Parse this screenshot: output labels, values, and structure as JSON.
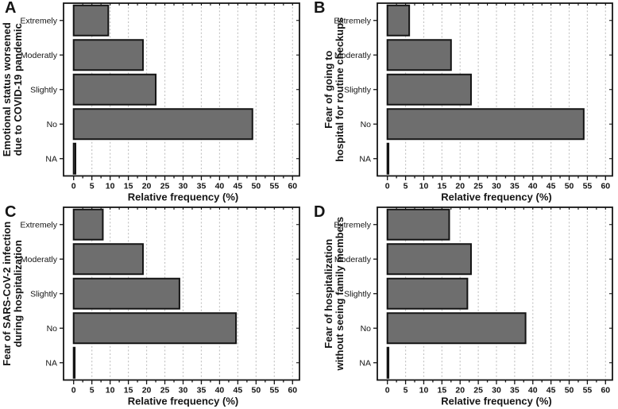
{
  "style": {
    "background": "#ffffff",
    "bar_fill": "#6e6e6e",
    "bar_stroke": "#141414",
    "grid_color": "#c4c4c4",
    "axis_color": "#141414",
    "text_color": "#141414"
  },
  "chart_data": [
    {
      "panel": "A",
      "type": "bar",
      "orientation": "horizontal",
      "ylabel_lines": [
        "Emotional status worsened",
        "due to COVID-19 pandemic"
      ],
      "categories": [
        "Extremely",
        "Moderatly",
        "Slightly",
        "No",
        "NA"
      ],
      "values": [
        9.5,
        19,
        22.5,
        49,
        0.5
      ],
      "xlabel": "Relative frequency (%)",
      "xlim": [
        0,
        60
      ],
      "xtick_step": 5,
      "minor_tick_step": 2.5,
      "xtick_labels": [
        "0",
        "5",
        "10",
        "15",
        "20",
        "25",
        "30",
        "35",
        "40",
        "45",
        "50",
        "55",
        "60"
      ],
      "grid": "vertical-dashed",
      "legend": "none"
    },
    {
      "panel": "B",
      "type": "bar",
      "orientation": "horizontal",
      "ylabel_lines": [
        "Fear of going to",
        "hospital for routine checkups"
      ],
      "categories": [
        "Extremely",
        "Moderatly",
        "Slightly",
        "No",
        "NA"
      ],
      "values": [
        6,
        17.5,
        23,
        54,
        0.3
      ],
      "xlabel": "Relative frequency (%)",
      "xlim": [
        0,
        60
      ],
      "xtick_step": 5,
      "minor_tick_step": 2.5,
      "xtick_labels": [
        "0",
        "5",
        "10",
        "15",
        "20",
        "25",
        "30",
        "35",
        "40",
        "45",
        "50",
        "55",
        "60"
      ],
      "grid": "vertical-dashed",
      "legend": "none"
    },
    {
      "panel": "C",
      "type": "bar",
      "orientation": "horizontal",
      "ylabel_lines": [
        "Fear of SARS-CoV-2 infection",
        "during hospitalization"
      ],
      "categories": [
        "Extremely",
        "Moderatly",
        "Slightly",
        "No",
        "NA"
      ],
      "values": [
        8,
        19,
        29,
        44.5,
        0.3
      ],
      "xlabel": "Relative frequency (%)",
      "xlim": [
        0,
        60
      ],
      "xtick_step": 5,
      "minor_tick_step": 2.5,
      "xtick_labels": [
        "0",
        "5",
        "10",
        "15",
        "20",
        "25",
        "30",
        "35",
        "40",
        "45",
        "50",
        "55",
        "60"
      ],
      "grid": "vertical-dashed",
      "legend": "none"
    },
    {
      "panel": "D",
      "type": "bar",
      "orientation": "horizontal",
      "ylabel_lines": [
        "Fear of hospitalization",
        "without seeing family members"
      ],
      "categories": [
        "Extremely",
        "Moderatly",
        "Slightly",
        "No",
        "NA"
      ],
      "values": [
        17,
        23,
        22,
        38,
        0.3
      ],
      "xlabel": "Relative frequency (%)",
      "xlim": [
        0,
        60
      ],
      "xtick_step": 5,
      "minor_tick_step": 2.5,
      "xtick_labels": [
        "0",
        "5",
        "10",
        "15",
        "20",
        "25",
        "30",
        "35",
        "40",
        "45",
        "50",
        "55",
        "60"
      ],
      "grid": "vertical-dashed",
      "legend": "none"
    }
  ]
}
